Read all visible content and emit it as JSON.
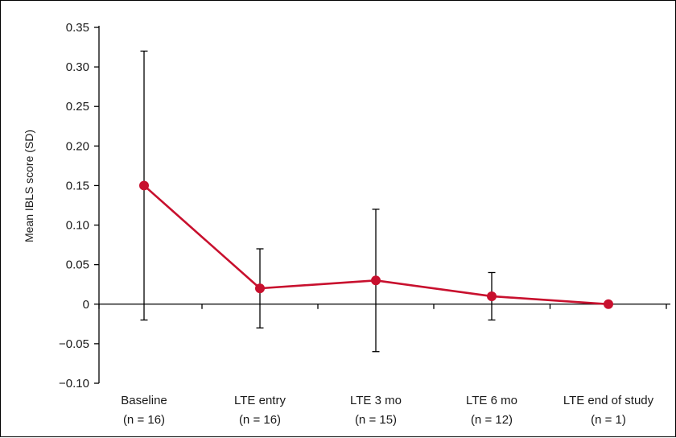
{
  "chart_data": {
    "type": "line",
    "title": "",
    "xlabel": "",
    "ylabel": "Mean IBLS  score (SD)",
    "ylim": [
      -0.1,
      0.35
    ],
    "yticks": [
      0.35,
      0.3,
      0.25,
      0.2,
      0.15,
      0.1,
      0.05,
      0,
      -0.05,
      -0.1
    ],
    "ytick_labels": [
      "0.35",
      "0.30",
      "0.25",
      "0.20",
      "0.15",
      "0.10",
      "0.05",
      "0",
      "−0.05",
      "−0.10"
    ],
    "categories": [
      "Baseline",
      "LTE entry",
      "LTE 3 mo",
      "LTE 6 mo",
      "LTE end of study"
    ],
    "category_n": [
      "(n = 16)",
      "(n = 16)",
      "(n = 15)",
      "(n = 12)",
      "(n = 1)"
    ],
    "series": [
      {
        "values": [
          0.15,
          0.02,
          0.03,
          0.01,
          0.0
        ],
        "error_low": [
          -0.02,
          -0.03,
          -0.06,
          -0.02,
          0.0
        ],
        "error_high": [
          0.32,
          0.07,
          0.12,
          0.04,
          0.0
        ],
        "color": "#c8102e"
      }
    ],
    "grid": false,
    "legend": "none"
  }
}
